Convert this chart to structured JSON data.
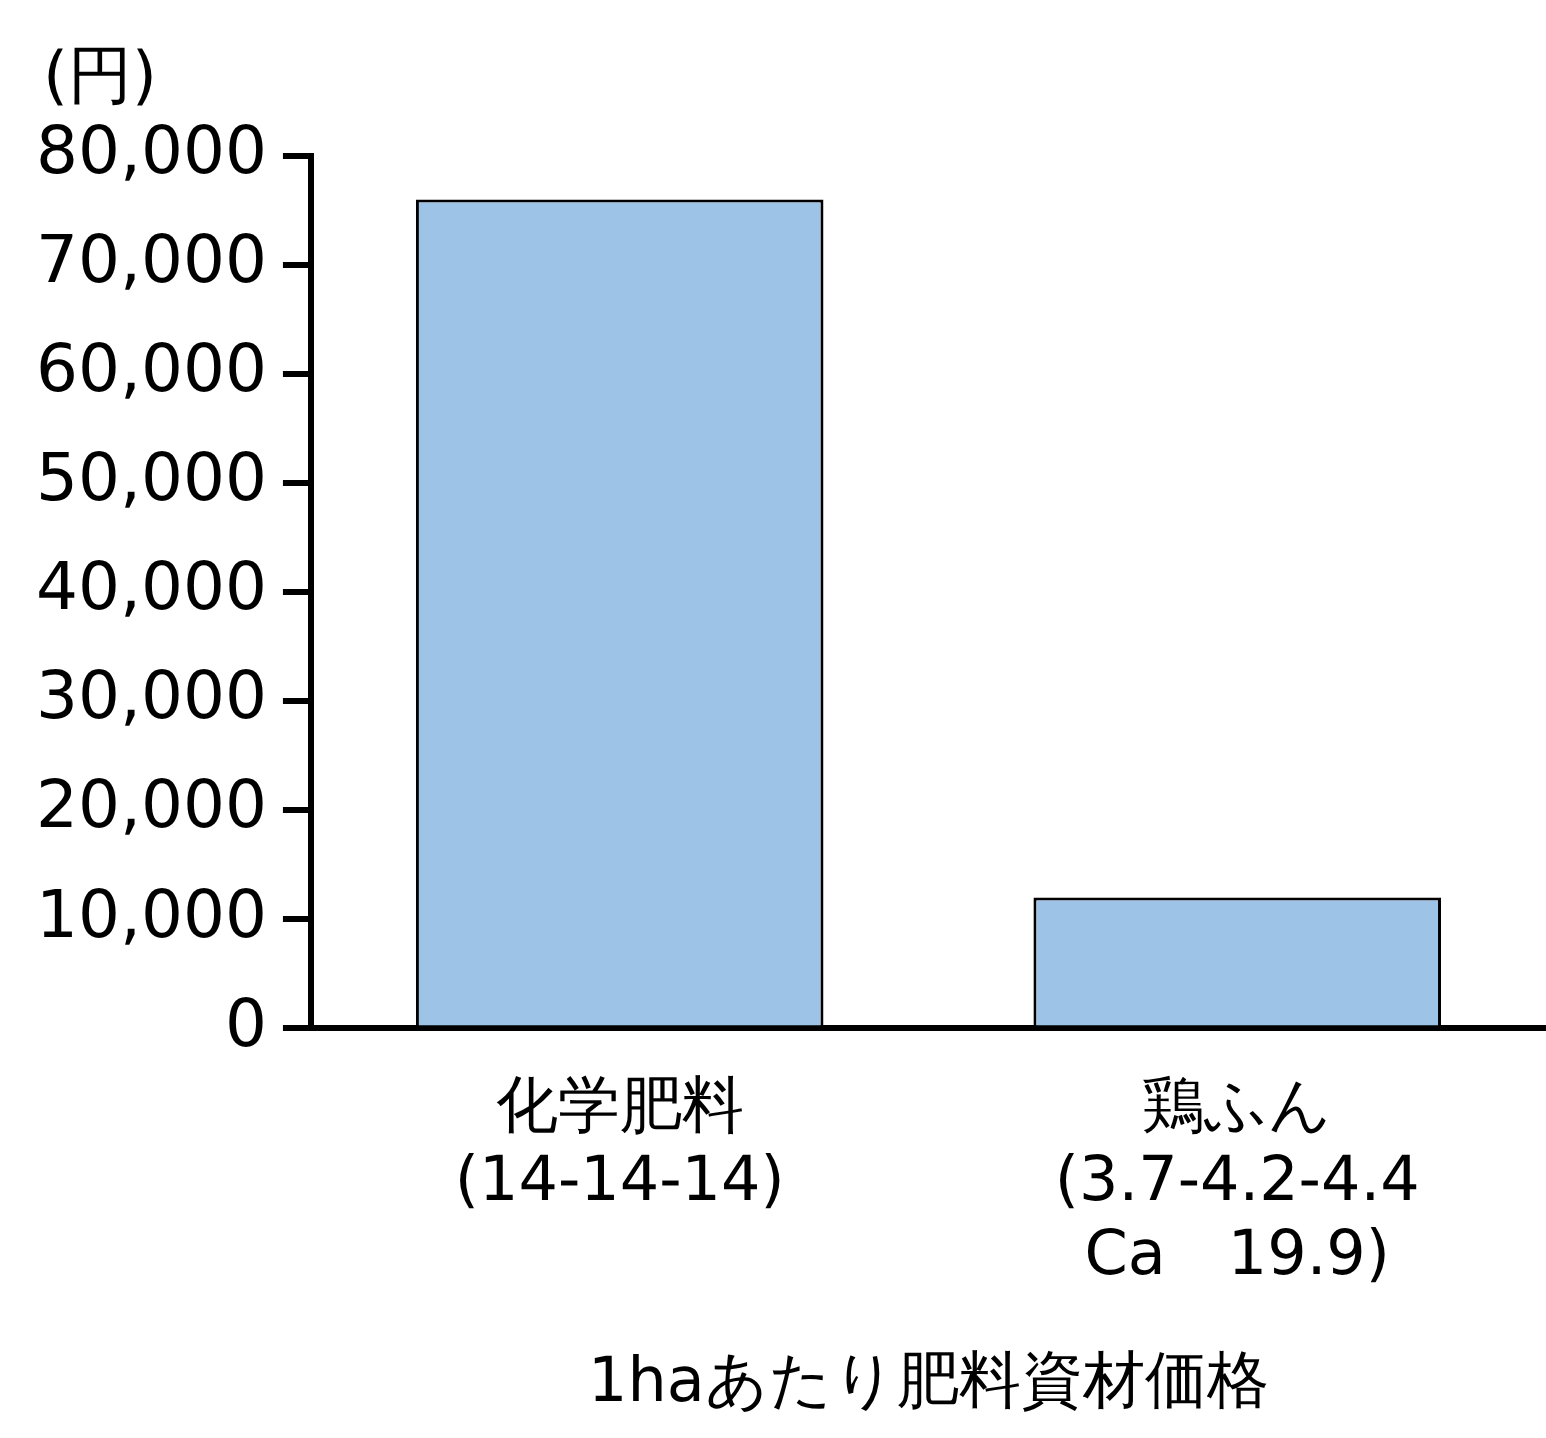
{
  "chart_data": {
    "type": "bar",
    "ylabel": "(円)",
    "xlabel": "1haあたり肥料資材価格",
    "categories": [
      "化学肥料\n(14-14-14)",
      "鶏ふん\n(3.7-4.2-4.4\nCa　19.9)"
    ],
    "values": [
      76000,
      12000
    ],
    "color": "#9dc3e6",
    "ylim": [
      0,
      80000
    ],
    "yticks": [
      0,
      {
        "value": 10000,
        "label": "10,000"
      },
      {
        "value": 20000,
        "label": "20,000"
      },
      {
        "value": 30000,
        "label": "30,000"
      },
      {
        "value": 40000,
        "label": "40,000"
      },
      {
        "value": 50000,
        "label": "50,000"
      },
      {
        "value": 60000,
        "label": "60,000"
      },
      {
        "value": 70000,
        "label": "70,000"
      },
      {
        "value": 80000,
        "label": "80,000"
      }
    ],
    "grid": false,
    "legend": false
  }
}
